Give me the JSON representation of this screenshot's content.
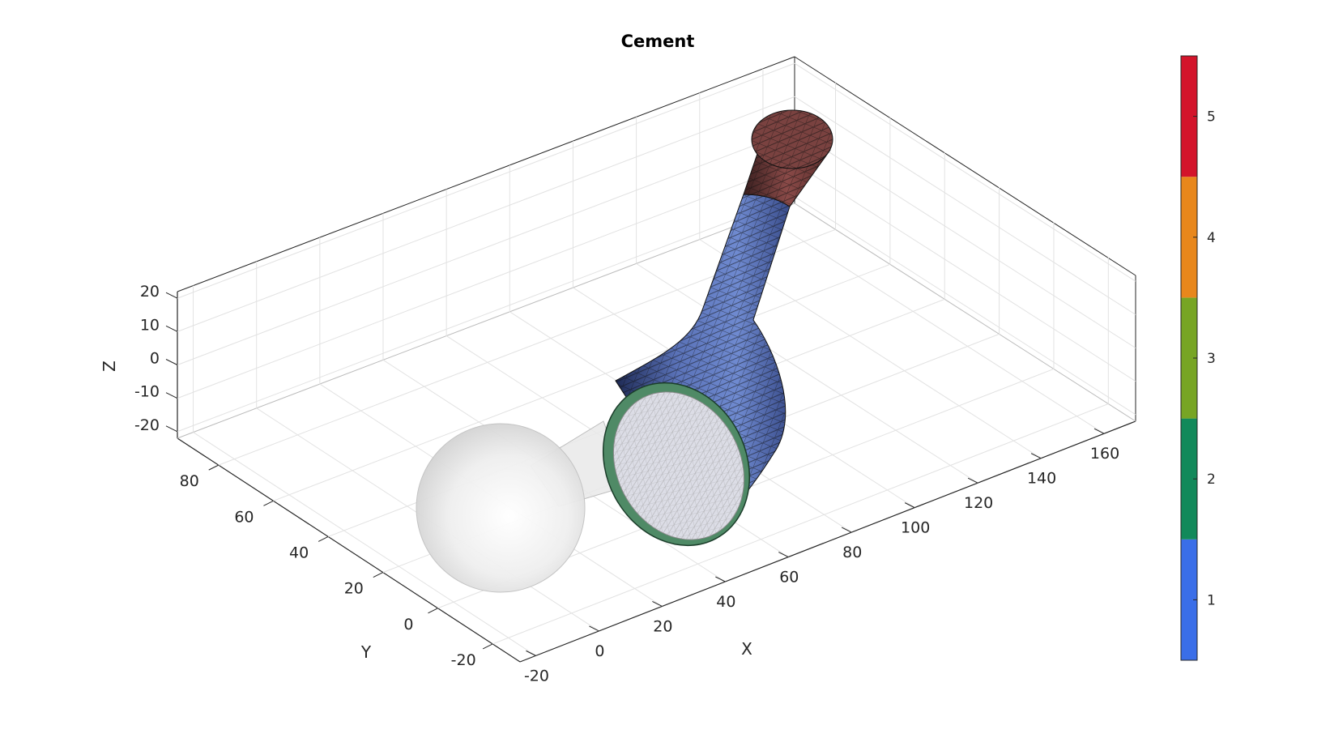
{
  "chart_data": {
    "type": "3d-surface-mesh",
    "title": "Cement",
    "xlabel": "X",
    "ylabel": "Y",
    "zlabel": "Z",
    "x_ticks": [
      "-20",
      "0",
      "20",
      "40",
      "60",
      "80",
      "100",
      "120",
      "140",
      "160"
    ],
    "y_ticks": [
      "-20",
      "0",
      "20",
      "40",
      "60",
      "80"
    ],
    "z_ticks": [
      "-20",
      "-10",
      "0",
      "10",
      "20"
    ],
    "xlim": [
      -25,
      170
    ],
    "ylim": [
      -30,
      95
    ],
    "zlim": [
      -22,
      22
    ],
    "grid": true,
    "colorbar": {
      "position": "right",
      "ticks": [
        "1",
        "2",
        "3",
        "4",
        "5"
      ],
      "colors": [
        "#3a6ee8",
        "#12895a",
        "#77a524",
        "#e8871c",
        "#d3142b"
      ]
    },
    "objects": [
      {
        "part": "femoral-head-sphere",
        "color": "#e6e6e6",
        "transparent": true
      },
      {
        "part": "implant-neck",
        "color": "#e6e6e6",
        "transparent": true
      },
      {
        "part": "cement-mantle-body",
        "label_value": 1,
        "color": "#3a6ee8"
      },
      {
        "part": "cement-rim",
        "label_value": 2,
        "color": "#12895a"
      },
      {
        "part": "cement-stem-tip",
        "label_value": 5,
        "color": "#d3142b"
      }
    ]
  }
}
